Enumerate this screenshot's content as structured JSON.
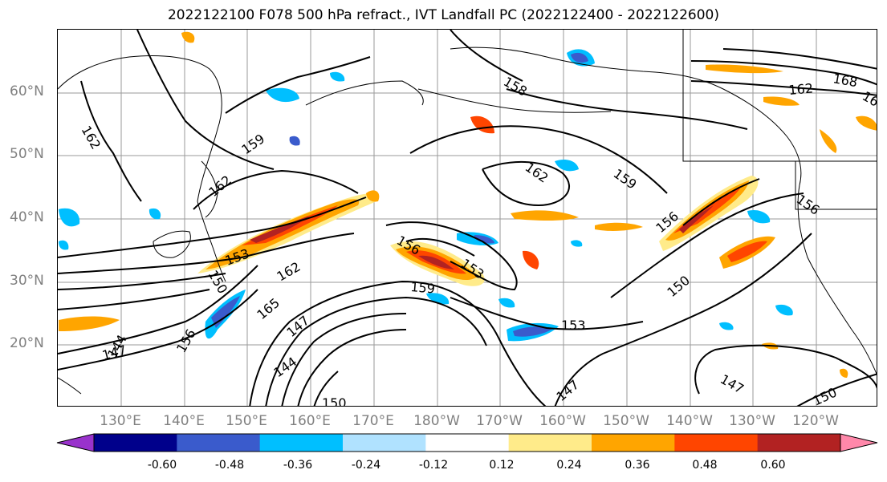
{
  "title": "2022122100 F078 500 hPa refract., IVT Landfall PC (2022122400 - 2022122600)",
  "lat_labels": [
    "60°N",
    "50°N",
    "40°N",
    "30°N",
    "20°N"
  ],
  "lon_labels": [
    "130°E",
    "140°E",
    "150°E",
    "160°E",
    "170°E",
    "180°W",
    "170°W",
    "160°W",
    "150°W",
    "140°W",
    "130°W",
    "120°W"
  ],
  "contour_labels": [
    "162",
    "159",
    "162",
    "153",
    "150",
    "156",
    "162",
    "165",
    "147",
    "144",
    "147",
    "144",
    "150",
    "156",
    "153",
    "159",
    "158",
    "162",
    "159",
    "153",
    "147",
    "156",
    "150",
    "147",
    "150",
    "156",
    "162",
    "168",
    "16"
  ],
  "colorbar": {
    "colors": [
      "#9932cc",
      "#00008b",
      "#3a5bcc",
      "#00bfff",
      "#b0e2ff",
      "#ffffff",
      "#ffeb8a",
      "#ffa500",
      "#ff4500",
      "#b22222",
      "#ff88aa"
    ],
    "tick_labels": [
      "-0.60",
      "-0.48",
      "-0.36",
      "-0.24",
      "-0.12",
      "0.12",
      "0.24",
      "0.36",
      "0.48",
      "0.60"
    ]
  }
}
